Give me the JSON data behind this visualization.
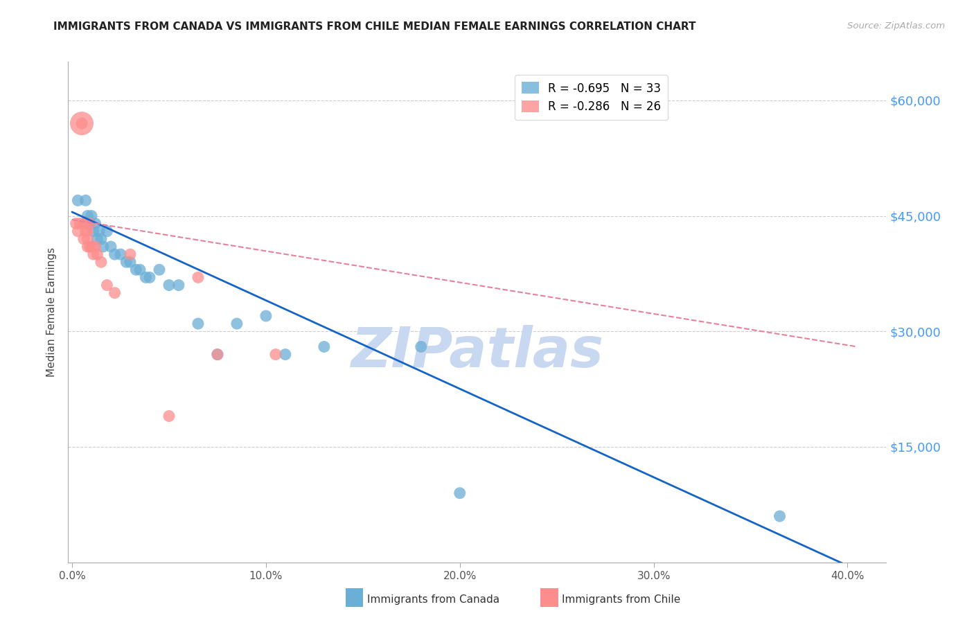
{
  "title": "IMMIGRANTS FROM CANADA VS IMMIGRANTS FROM CHILE MEDIAN FEMALE EARNINGS CORRELATION CHART",
  "source": "Source: ZipAtlas.com",
  "ylabel": "Median Female Earnings",
  "xlabel_ticks": [
    "0.0%",
    "10.0%",
    "20.0%",
    "30.0%",
    "40.0%"
  ],
  "xlabel_tick_vals": [
    0.0,
    0.1,
    0.2,
    0.3,
    0.4
  ],
  "ylabel_ticks": [
    0,
    15000,
    30000,
    45000,
    60000
  ],
  "ylabel_tick_labels": [
    "",
    "$15,000",
    "$30,000",
    "$45,000",
    "$60,000"
  ],
  "ylim": [
    0,
    65000
  ],
  "xlim": [
    -0.002,
    0.42
  ],
  "canada_R": "-0.695",
  "canada_N": "33",
  "chile_R": "-0.286",
  "chile_N": "26",
  "canada_color": "#6baed6",
  "chile_color": "#fc8d8d",
  "canada_line_color": "#1464c8",
  "chile_line_color": "#e8809a",
  "watermark": "ZIPatlas",
  "watermark_color": "#c8d8f0",
  "legend_label_canada": "Immigrants from Canada",
  "legend_label_chile": "Immigrants from Chile",
  "canada_x": [
    0.003,
    0.007,
    0.008,
    0.009,
    0.01,
    0.011,
    0.012,
    0.013,
    0.014,
    0.015,
    0.016,
    0.018,
    0.02,
    0.022,
    0.025,
    0.028,
    0.03,
    0.033,
    0.035,
    0.038,
    0.04,
    0.045,
    0.05,
    0.055,
    0.065,
    0.075,
    0.085,
    0.1,
    0.11,
    0.13,
    0.18,
    0.2,
    0.365
  ],
  "canada_y": [
    47000,
    47000,
    45000,
    44000,
    45000,
    43000,
    44000,
    42000,
    43000,
    42000,
    41000,
    43000,
    41000,
    40000,
    40000,
    39000,
    39000,
    38000,
    38000,
    37000,
    37000,
    38000,
    36000,
    36000,
    31000,
    27000,
    31000,
    32000,
    27000,
    28000,
    28000,
    9000,
    6000
  ],
  "canada_sizes": [
    150,
    150,
    150,
    150,
    150,
    150,
    150,
    150,
    150,
    150,
    150,
    150,
    150,
    150,
    150,
    150,
    150,
    150,
    150,
    150,
    150,
    150,
    150,
    150,
    150,
    150,
    150,
    150,
    150,
    150,
    150,
    150,
    150
  ],
  "chile_x": [
    0.002,
    0.003,
    0.004,
    0.005,
    0.005,
    0.006,
    0.006,
    0.007,
    0.007,
    0.008,
    0.008,
    0.008,
    0.009,
    0.009,
    0.01,
    0.011,
    0.012,
    0.013,
    0.015,
    0.018,
    0.022,
    0.03,
    0.05,
    0.065,
    0.075,
    0.105
  ],
  "chile_y": [
    44000,
    43000,
    44000,
    57000,
    57000,
    44000,
    42000,
    44000,
    43000,
    43000,
    42000,
    41000,
    44000,
    41000,
    41000,
    40000,
    41000,
    40000,
    39000,
    36000,
    35000,
    40000,
    19000,
    37000,
    27000,
    27000
  ],
  "chile_sizes_base": [
    150,
    150,
    150,
    150,
    150,
    150,
    150,
    150,
    150,
    150,
    150,
    150,
    150,
    150,
    150,
    150,
    150,
    150,
    150,
    150,
    150,
    150,
    150,
    150,
    150,
    150
  ],
  "chile_large_idx": 3,
  "chile_large_size": 600,
  "background_color": "#ffffff",
  "grid_color": "#cccccc",
  "title_color": "#222222",
  "source_color": "#aaaaaa",
  "axis_color": "#aaaaaa",
  "tick_color": "#555555",
  "right_tick_color": "#4499ff"
}
